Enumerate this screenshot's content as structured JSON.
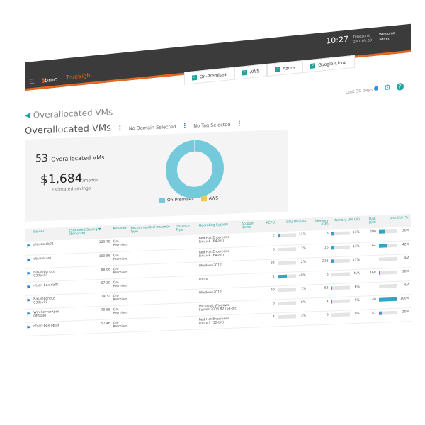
{
  "header": {
    "brand_logo": "bmc",
    "product": "TrueSight",
    "time": "10:27",
    "timezone_line1": "Timezone",
    "timezone_line2": "GMT-05:00",
    "user_line1": "Welcome",
    "user": "admin"
  },
  "filters": [
    {
      "label": "On-Premises",
      "checked": true
    },
    {
      "label": "AWS",
      "checked": true
    },
    {
      "label": "Azure",
      "checked": true
    },
    {
      "label": "Google Cloud",
      "checked": true
    }
  ],
  "period": "Last 30 days",
  "breadcrumb": "Overallocated VMs",
  "title": "Overallocated VMs",
  "domain_select": "No Domain Selected",
  "tag_select": "No Tag Selected",
  "summary": {
    "count": "53",
    "count_label": "Overallocated VMs",
    "savings": "$1,684",
    "savings_unit": "/month",
    "savings_label": "Estimated savings"
  },
  "colors": {
    "accent": "#1fa39a",
    "on_premises": "#74cadb",
    "aws": "#f5c75a",
    "header": "#3b3b3b",
    "brand_orange": "#e8661f"
  },
  "chart_data": {
    "type": "pie",
    "legend": [
      "On-Premises",
      "AWS"
    ],
    "values": [
      53,
      0
    ],
    "legend_placement": "bottom"
  },
  "table": {
    "headers": [
      "Server",
      "Estimated Saving ▼ ($/month)",
      "Provider",
      "Recommended Instance Type",
      "Instance Type",
      "Operating System",
      "Account Name",
      "#CPU",
      "CPU Util (%)",
      "Memory (GB)",
      "Memory Util (%)",
      "Disk (GB)",
      "Disk Util (%)"
    ],
    "rows": [
      {
        "server": "plaudaldb01",
        "saving": "120.79",
        "provider": "On-Premises",
        "os": "Red Hat Enterprise Linux 6 (64-bit)",
        "cpu": "2",
        "cpu_util": "11%",
        "cpu_pct": 11,
        "mem": "8",
        "mem_util": "13%",
        "mem_pct": 13,
        "disk": "299",
        "disk_util": "30%",
        "disk_pct": 30
      },
      {
        "server": "dbvalscass",
        "saving": "100.56",
        "provider": "On-Premises",
        "os": "Red Hat Enterprise Linux 6 (64-bit)",
        "cpu": "6",
        "cpu_util": "2%",
        "cpu_pct": 2,
        "mem": "16",
        "mem_util": "13%",
        "mem_pct": 13,
        "disk": "64",
        "disk_util": "42%",
        "disk_pct": 42
      },
      {
        "server": "Rasi@bonpus 02dev01",
        "saving": "88.88",
        "provider": "On-Premises",
        "os": "Windows2012",
        "cpu": "32",
        "cpu_util": "2%",
        "cpu_pct": 2,
        "mem": "233",
        "mem_util": "17%",
        "mem_pct": 17,
        "disk": "",
        "disk_util": "N/A",
        "disk_pct": 0
      },
      {
        "server": "ntsan-box-da0t",
        "saving": "87.30",
        "provider": "On-Premises",
        "os": "Linux",
        "cpu": "1",
        "cpu_util": "49%",
        "cpu_pct": 49,
        "mem": "8",
        "mem_util": "N/A",
        "mem_pct": 0,
        "disk": "168",
        "disk_util": "10%",
        "disk_pct": 10
      },
      {
        "server": "Rasi@bonpus 03dev01",
        "saving": "79.32",
        "provider": "On-Premises",
        "os": "Windows2012",
        "cpu": "40",
        "cpu_util": "1%",
        "cpu_pct": 1,
        "mem": "63",
        "mem_util": "6%",
        "mem_pct": 6,
        "disk": "",
        "disk_util": "N/A",
        "disk_pct": 0
      },
      {
        "server": "Win-ServerXpro OF1130",
        "saving": "70.88",
        "provider": "On-Premises",
        "os": "Microsoft Windows Server 2008 R2 (64-bit)",
        "cpu": "8",
        "cpu_util": "0%",
        "cpu_pct": 0,
        "mem": "4",
        "mem_util": "5%",
        "mem_pct": 5,
        "disk": "40",
        "disk_util": "100%",
        "disk_pct": 100
      },
      {
        "server": "ntsan-box-op13",
        "saving": "57.46",
        "provider": "On-Premises",
        "os": "Red Hat Enterprise Linux 5 (32-bit)",
        "cpu": "4",
        "cpu_util": "3%",
        "cpu_pct": 3,
        "mem": "8",
        "mem_util": "0%",
        "mem_pct": 0,
        "disk": "41",
        "disk_util": "20%",
        "disk_pct": 20
      }
    ]
  }
}
